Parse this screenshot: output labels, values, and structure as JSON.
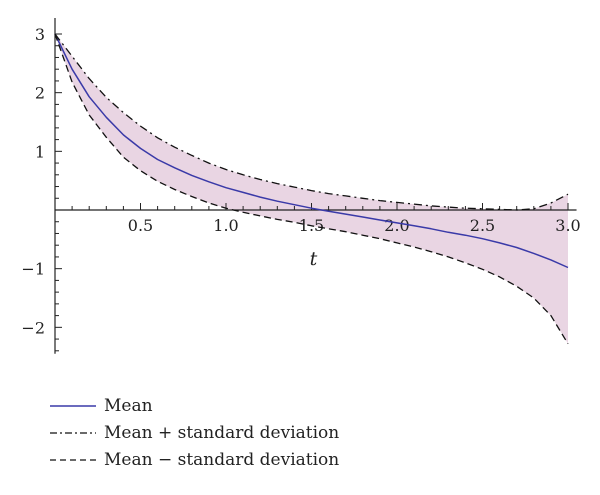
{
  "chart_data": {
    "type": "line",
    "xlabel": "t",
    "ylabel": "",
    "xlim": [
      0,
      3.05
    ],
    "ylim": [
      -2.45,
      3.15
    ],
    "x_ticks": [
      {
        "value": 0.5,
        "label": "0.5"
      },
      {
        "value": 1.0,
        "label": "1.0"
      },
      {
        "value": 1.5,
        "label": "1.5"
      },
      {
        "value": 2.0,
        "label": "2.0"
      },
      {
        "value": 2.5,
        "label": "2.5"
      },
      {
        "value": 3.0,
        "label": "3.0"
      }
    ],
    "y_ticks": [
      {
        "value": 3,
        "label": "3"
      },
      {
        "value": 2,
        "label": "2"
      },
      {
        "value": 1,
        "label": "1"
      },
      {
        "value": -1,
        "label": "−1"
      },
      {
        "value": -2,
        "label": "−2"
      }
    ],
    "x": [
      0.0,
      0.1,
      0.2,
      0.3,
      0.4,
      0.5,
      0.6,
      0.7,
      0.8,
      0.9,
      1.0,
      1.1,
      1.2,
      1.3,
      1.4,
      1.5,
      1.6,
      1.7,
      1.8,
      1.9,
      2.0,
      2.1,
      2.2,
      2.3,
      2.4,
      2.5,
      2.6,
      2.7,
      2.8,
      2.9,
      3.0
    ],
    "series": [
      {
        "name": "Mean",
        "style": "solid",
        "color": "#3a3aa8",
        "values": [
          3.0,
          2.4,
          1.93,
          1.58,
          1.28,
          1.05,
          0.86,
          0.72,
          0.59,
          0.48,
          0.38,
          0.3,
          0.22,
          0.15,
          0.09,
          0.03,
          -0.02,
          -0.07,
          -0.12,
          -0.17,
          -0.22,
          -0.27,
          -0.32,
          -0.38,
          -0.43,
          -0.49,
          -0.56,
          -0.64,
          -0.74,
          -0.85,
          -0.98
        ]
      },
      {
        "name": "Mean + standard deviation",
        "style": "dashdot",
        "color": "#111111",
        "values": [
          3.0,
          2.62,
          2.24,
          1.92,
          1.66,
          1.43,
          1.23,
          1.07,
          0.93,
          0.8,
          0.69,
          0.6,
          0.52,
          0.45,
          0.39,
          0.33,
          0.28,
          0.24,
          0.2,
          0.16,
          0.13,
          0.1,
          0.07,
          0.05,
          0.03,
          0.02,
          0.01,
          0.0,
          0.02,
          0.12,
          0.27
        ]
      },
      {
        "name": "Mean − standard deviation",
        "style": "dashed",
        "color": "#111111",
        "values": [
          3.0,
          2.18,
          1.62,
          1.24,
          0.9,
          0.67,
          0.49,
          0.35,
          0.23,
          0.12,
          0.03,
          -0.04,
          -0.1,
          -0.16,
          -0.21,
          -0.27,
          -0.32,
          -0.37,
          -0.43,
          -0.49,
          -0.56,
          -0.63,
          -0.71,
          -0.8,
          -0.9,
          -1.01,
          -1.14,
          -1.3,
          -1.5,
          -1.8,
          -2.28
        ]
      }
    ],
    "band_color": "#e9d5e3",
    "legend_position": "bottom-left",
    "grid": false
  }
}
